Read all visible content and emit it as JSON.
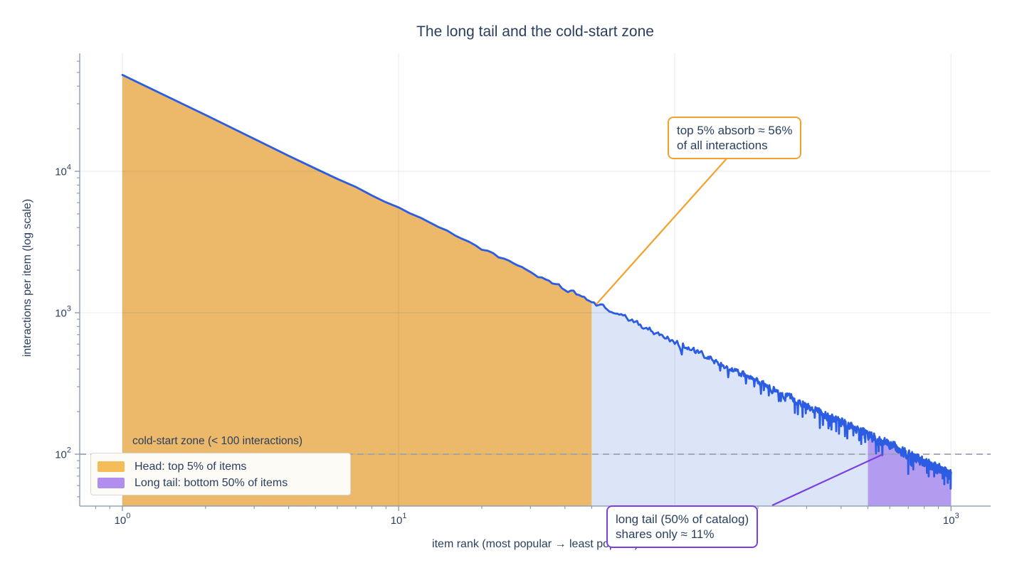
{
  "chart_data": {
    "type": "area",
    "title": "The long tail and the cold-start zone",
    "xlabel": "item rank (most popular → least popular)",
    "ylabel": "interactions per item (log scale)",
    "x_scale": "log",
    "y_scale": "log",
    "x_range": [
      1,
      1000
    ],
    "y_range": [
      50,
      70000
    ],
    "x_ticks": [
      {
        "label": "10^0",
        "value": 1
      },
      {
        "label": "10^1",
        "value": 10
      },
      {
        "label": "10^2",
        "value": 100
      },
      {
        "label": "10^3",
        "value": 1000
      }
    ],
    "y_ticks": [
      {
        "label": "10^2",
        "value": 100
      },
      {
        "label": "10^3",
        "value": 1000
      },
      {
        "label": "10^4",
        "value": 10000
      }
    ],
    "grid": true,
    "series": {
      "name": "interactions per item",
      "model": "power_law_with_noise",
      "intercept_at_rank_1": 48000,
      "exponent": -0.943,
      "noise": "multiplicative, amplitude increasing with rank",
      "sampled_points": {
        "rank": [
          1,
          2,
          3,
          5,
          10,
          20,
          50,
          100,
          200,
          500,
          1000
        ],
        "interactions": [
          48000,
          25000,
          17100,
          10500,
          5500,
          2850,
          1200,
          625,
          325,
          138,
          72
        ]
      }
    },
    "regions": [
      {
        "name": "head",
        "rank_start": 1,
        "rank_end": 50,
        "color": "#ecb96b"
      },
      {
        "name": "mid-tail",
        "rank_start": 50,
        "rank_end": 1000,
        "color": "#dbe5f7"
      },
      {
        "name": "long-tail",
        "rank_start": 500,
        "rank_end": 1000,
        "color": "#b39cf0"
      }
    ],
    "line_color": "#2b5ce1",
    "threshold_line": {
      "value": 100,
      "style": "dashed",
      "color": "#9aa3ae",
      "label": "cold-start zone (< 100 interactions)"
    },
    "legend": {
      "position": "bottom-left",
      "items": [
        {
          "label": "Head: top 5% of items",
          "color": "#f5bc5a"
        },
        {
          "label": "Long tail: bottom 50% of items",
          "color": "#b28df0"
        }
      ]
    },
    "annotations": [
      {
        "id": "head-share",
        "text_line1": "top 5% absorb ≈ 56%",
        "text_line2": "of all interactions",
        "border_color": "#f0a22c",
        "points_to": {
          "rank": 52,
          "interactions": 1150
        }
      },
      {
        "id": "tail-share",
        "text_line1": "long tail (50% of catalog)",
        "text_line2": "shares only ≈ 11%",
        "border_color": "#7c3fe4",
        "points_to": {
          "rank": 568,
          "interactions": 100
        }
      }
    ]
  }
}
